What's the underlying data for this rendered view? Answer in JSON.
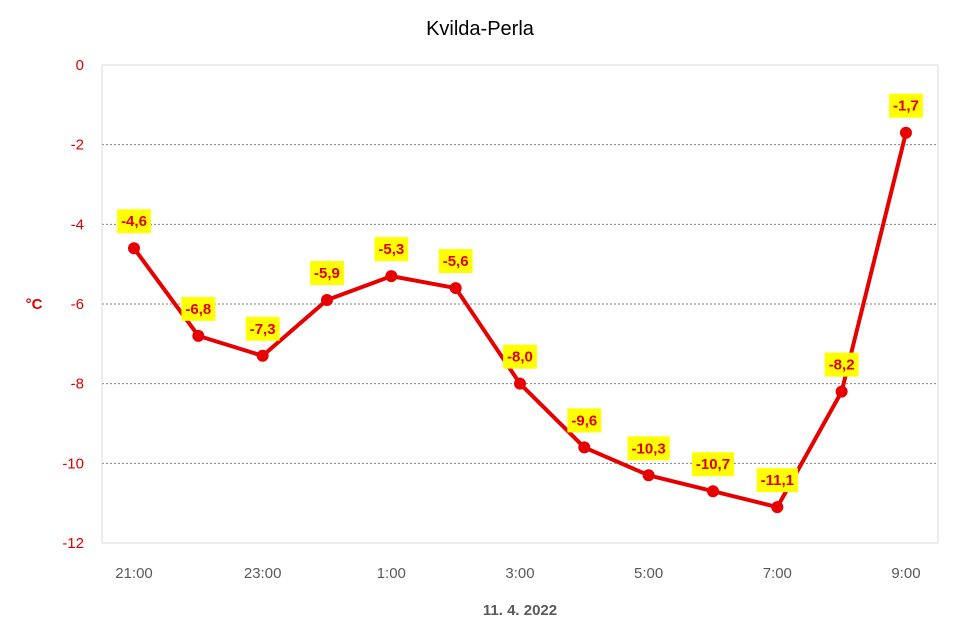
{
  "chart_data": {
    "type": "line",
    "title": "Kvilda-Perla",
    "xlabel": "11. 4. 2022",
    "ylabel": "°C",
    "ylim": [
      -12,
      0
    ],
    "yticks": [
      0,
      -2,
      -4,
      -6,
      -8,
      -10,
      -12
    ],
    "ytick_labels": [
      "0",
      "-2",
      "-4",
      "-6",
      "-8",
      "-10",
      "-12"
    ],
    "categories": [
      "21:00",
      "22:00",
      "23:00",
      "0:00",
      "1:00",
      "2:00",
      "3:00",
      "4:00",
      "5:00",
      "6:00",
      "7:00",
      "8:00",
      "9:00"
    ],
    "xtick_labels": [
      "21:00",
      "",
      "23:00",
      "",
      "1:00",
      "",
      "3:00",
      "",
      "5:00",
      "",
      "7:00",
      "",
      "9:00"
    ],
    "values": [
      -4.6,
      -6.8,
      -7.3,
      -5.9,
      -5.3,
      -5.6,
      -8.0,
      -9.6,
      -10.3,
      -10.7,
      -11.1,
      -8.2,
      -1.7
    ],
    "data_labels": [
      "-4,6",
      "-6,8",
      "-7,3",
      "-5,9",
      "-5,3",
      "-5,6",
      "-8,0",
      "-9,6",
      "-10,3",
      "-10,7",
      "-11,1",
      "-8,2",
      "-1,7"
    ],
    "grid": true,
    "colors": {
      "line": "#e60000",
      "marker": "#e60000",
      "label_bg": "#ffff00",
      "label_text": "#e00000",
      "axis_text_y": "#e00000",
      "axis_text_x": "#595959",
      "grid": "#7f7f7f",
      "plot_border": "#d9d9d9"
    }
  }
}
